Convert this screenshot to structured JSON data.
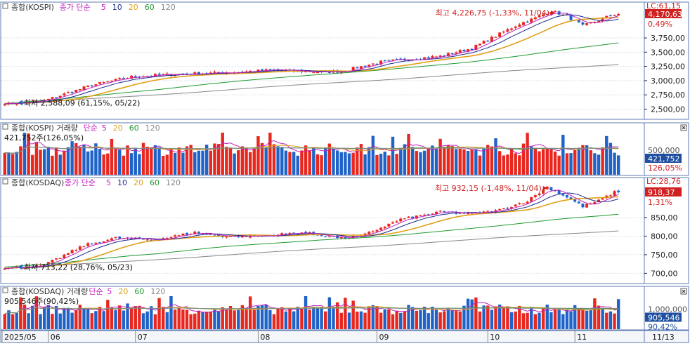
{
  "colors": {
    "up": "#e8271f",
    "down": "#1f63c9",
    "ma5": "#c020c0",
    "ma10": "#1c2a8c",
    "ma20": "#e0a018",
    "ma60": "#209a30",
    "ma120": "#888888",
    "frame": "#5f7bb2",
    "grid": "#d8deea",
    "axis_text": "#222222",
    "badge_red": "#d02020",
    "badge_blue": "#1f4fa0"
  },
  "chart_data": [
    {
      "id": "kospi_price",
      "type": "candlestick",
      "legend": {
        "name": "종합(KOSPI)",
        "ma_label": "종가 단순",
        "periods": [
          "5",
          "10",
          "20",
          "60",
          "120"
        ]
      },
      "y_ticks": [
        "3,750,00",
        "3,500,00",
        "3,250,00",
        "3,000,00",
        "2,750,00",
        "2,500,00"
      ],
      "y_tick_values": [
        3750,
        3500,
        3250,
        3000,
        2750,
        2500
      ],
      "ylim": [
        2370,
        4330
      ],
      "start": 2588,
      "end": 4170,
      "waypoints": [
        [
          0,
          2588
        ],
        [
          10,
          2650
        ],
        [
          22,
          2920
        ],
        [
          32,
          3070
        ],
        [
          42,
          3110
        ],
        [
          55,
          3140
        ],
        [
          68,
          3185
        ],
        [
          80,
          3150
        ],
        [
          85,
          3165
        ],
        [
          95,
          3330
        ],
        [
          110,
          3430
        ],
        [
          118,
          3570
        ],
        [
          130,
          4000
        ],
        [
          134,
          4100
        ],
        [
          138,
          4226
        ],
        [
          142,
          4130
        ],
        [
          146,
          3960
        ],
        [
          150,
          4060
        ],
        [
          154,
          4170
        ]
      ],
      "ma120_start": 2580,
      "ma120_end": 3290,
      "ma60_start": 2600,
      "ma60_end": 3560,
      "last_value": "4,170,63",
      "change_pct": "0,49%",
      "lc_label": "LC:61,15",
      "high_label": "최고 4,226,75 (-1,33%, 11/04)",
      "low_label": "최저 2,588,09 (61,15%, 05/22)"
    },
    {
      "id": "kospi_volume",
      "type": "bar",
      "legend": {
        "name": "종합(KOSPI) 거래량",
        "ma_label": "단순",
        "periods": [
          "5",
          "20",
          "60",
          "120"
        ]
      },
      "value_label": "421,752주(126,05%)",
      "badge_label": "421,752",
      "badge_pct": "126,05%",
      "ref_label": "500,000"
    },
    {
      "id": "kosdaq_price",
      "type": "candlestick",
      "legend": {
        "name": "종합(KOSDAQ)",
        "ma_label": "종가 단순",
        "periods": [
          "5",
          "10",
          "20",
          "60",
          "120"
        ]
      },
      "y_ticks": [
        "850,00",
        "800,00",
        "750,00",
        "700,00"
      ],
      "y_tick_values": [
        850,
        800,
        750,
        700
      ],
      "ylim": [
        680,
        950
      ],
      "start": 713,
      "end": 918,
      "waypoints": [
        [
          0,
          713
        ],
        [
          10,
          722
        ],
        [
          20,
          775
        ],
        [
          28,
          795
        ],
        [
          38,
          790
        ],
        [
          48,
          810
        ],
        [
          55,
          800
        ],
        [
          65,
          800
        ],
        [
          75,
          810
        ],
        [
          85,
          795
        ],
        [
          90,
          800
        ],
        [
          100,
          845
        ],
        [
          110,
          865
        ],
        [
          118,
          860
        ],
        [
          125,
          870
        ],
        [
          132,
          895
        ],
        [
          137,
          932
        ],
        [
          142,
          905
        ],
        [
          146,
          880
        ],
        [
          150,
          895
        ],
        [
          154,
          918
        ]
      ],
      "ma120_start": 712,
      "ma120_end": 815,
      "ma60_start": 718,
      "ma60_end": 848,
      "last_value": "918,37",
      "change_pct": "1,31%",
      "lc_label": "LC:28,76",
      "high_label": "최고 932,15 (-1,48%, 11/04)",
      "low_label": "최저 713,22 (28,76%, 05/23)"
    },
    {
      "id": "kosdaq_volume",
      "type": "bar",
      "legend": {
        "name": "종합(KOSDAQ) 거래량",
        "ma_label": "단순",
        "periods": [
          "5",
          "20",
          "60",
          "120"
        ]
      },
      "value_label": "905,546주(90,42%)",
      "badge_label": "905,546",
      "badge_pct": "90,42%",
      "ref_label": "1,000,000"
    }
  ],
  "x_axis": {
    "labels": [
      "2025/05",
      "06",
      "07",
      "08",
      "09",
      "10",
      "11"
    ],
    "label_days": [
      0,
      11,
      33,
      64,
      94,
      122,
      144
    ],
    "right_label": "11/13",
    "num_days": 156
  }
}
